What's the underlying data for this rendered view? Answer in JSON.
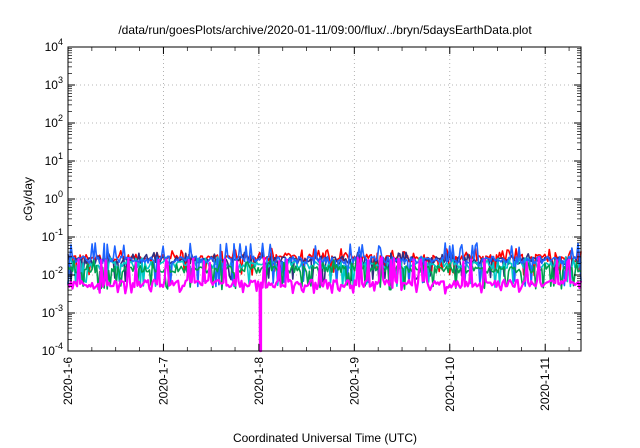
{
  "chart_data": {
    "type": "line",
    "title": "/data/run/goesPlots/archive/2020-01-11/09:00/flux/../bryn/5daysEarthData.plot",
    "xlabel": "Coordinated Universal Time (UTC)",
    "ylabel": "cGy/day",
    "yscale": "log",
    "ylim": [
      0.0001,
      10000
    ],
    "xlim": [
      "2020-01-06 00:00",
      "2020-01-11 09:00"
    ],
    "x_ticks": [
      "2020-1-6",
      "2020-1-7",
      "2020-1-8",
      "2020-1-9",
      "2020-1-10",
      "2020-1-11"
    ],
    "y_ticks": [
      {
        "base": "10",
        "exp": "4"
      },
      {
        "base": "10",
        "exp": "3"
      },
      {
        "base": "10",
        "exp": "2"
      },
      {
        "base": "10",
        "exp": "1"
      },
      {
        "base": "10",
        "exp": "0"
      },
      {
        "base": "10",
        "exp": "-1"
      },
      {
        "base": "10",
        "exp": "-2"
      },
      {
        "base": "10",
        "exp": "-3"
      },
      {
        "base": "10",
        "exp": "-4"
      }
    ],
    "grid": true,
    "series": [
      {
        "color": "#ff0000",
        "base": 0.028,
        "spike": 0.05,
        "dip": 0.012
      },
      {
        "color": "#2f2f7f",
        "base": 0.024,
        "spike": 0.04,
        "dip": 0.008
      },
      {
        "color": "#00c8c8",
        "base": 0.018,
        "spike": 0.03,
        "dip": 0.006
      },
      {
        "color": "#1e64ff",
        "base": 0.025,
        "spike": 0.07,
        "dip": 0.006
      },
      {
        "color": "#00a050",
        "base": 0.014,
        "spike": 0.025,
        "dip": 0.005
      },
      {
        "color": "#ff00ff",
        "base": 0.006,
        "spike": 0.03,
        "dip": 0.004
      }
    ],
    "events": [
      {
        "x": "2020-01-08 00:25",
        "series": 5,
        "value": 0.0001,
        "label": "drop"
      }
    ]
  }
}
